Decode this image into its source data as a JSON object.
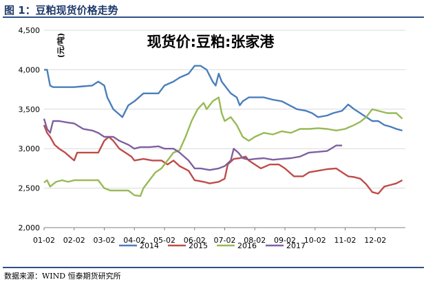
{
  "figure_title": "图 1：豆粕现货价格走势",
  "source": "数据来源：WIND 恒泰期货研究所",
  "chart_data": {
    "type": "line",
    "title": "现货价:豆粕:张家港",
    "ylabel": "(元/吨)",
    "xlabel": "",
    "ylim": [
      2000,
      4500
    ],
    "xlim": [
      1,
      13
    ],
    "x_unit": "month (1.0 = Jan 2)",
    "y_ticks": [
      2000,
      2500,
      3000,
      3500,
      4000,
      4500
    ],
    "y_tick_labels": [
      "2,000",
      "2,500",
      "3,000",
      "3,500",
      "4,000",
      "4,500"
    ],
    "x_ticks": [
      1,
      2,
      3,
      4,
      5,
      6,
      7,
      8,
      9,
      10,
      11,
      12
    ],
    "x_tick_labels": [
      "01-02",
      "02-02",
      "03-02",
      "04-02",
      "05-02",
      "06-02",
      "07-02",
      "08-02",
      "09-02",
      "10-02",
      "11-02",
      "12-02"
    ],
    "grid": "horizontal",
    "legend_position": "bottom",
    "series": [
      {
        "name": "2014",
        "color": "#4a7ebb",
        "points": [
          [
            1.0,
            4000
          ],
          [
            1.1,
            4000
          ],
          [
            1.2,
            3800
          ],
          [
            1.3,
            3780
          ],
          [
            1.5,
            3780
          ],
          [
            1.8,
            3780
          ],
          [
            2.0,
            3780
          ],
          [
            2.3,
            3790
          ],
          [
            2.6,
            3800
          ],
          [
            2.8,
            3850
          ],
          [
            3.0,
            3800
          ],
          [
            3.1,
            3650
          ],
          [
            3.3,
            3500
          ],
          [
            3.45,
            3450
          ],
          [
            3.6,
            3400
          ],
          [
            3.8,
            3550
          ],
          [
            4.0,
            3600
          ],
          [
            4.3,
            3700
          ],
          [
            4.5,
            3700
          ],
          [
            4.8,
            3700
          ],
          [
            5.0,
            3800
          ],
          [
            5.3,
            3850
          ],
          [
            5.5,
            3900
          ],
          [
            5.8,
            3950
          ],
          [
            6.0,
            4050
          ],
          [
            6.2,
            4050
          ],
          [
            6.4,
            4000
          ],
          [
            6.6,
            3850
          ],
          [
            6.7,
            3800
          ],
          [
            6.8,
            3950
          ],
          [
            6.9,
            3850
          ],
          [
            7.0,
            3800
          ],
          [
            7.2,
            3700
          ],
          [
            7.4,
            3650
          ],
          [
            7.5,
            3550
          ],
          [
            7.6,
            3600
          ],
          [
            7.8,
            3650
          ],
          [
            8.0,
            3650
          ],
          [
            8.3,
            3650
          ],
          [
            8.6,
            3620
          ],
          [
            8.9,
            3600
          ],
          [
            9.1,
            3560
          ],
          [
            9.4,
            3500
          ],
          [
            9.7,
            3480
          ],
          [
            9.9,
            3450
          ],
          [
            10.1,
            3400
          ],
          [
            10.4,
            3420
          ],
          [
            10.6,
            3450
          ],
          [
            10.9,
            3480
          ],
          [
            11.1,
            3560
          ],
          [
            11.3,
            3500
          ],
          [
            11.5,
            3450
          ],
          [
            11.7,
            3400
          ],
          [
            11.9,
            3350
          ],
          [
            12.1,
            3350
          ],
          [
            12.3,
            3300
          ],
          [
            12.5,
            3280
          ],
          [
            12.7,
            3250
          ],
          [
            12.9,
            3230
          ]
        ]
      },
      {
        "name": "2015",
        "color": "#be4b48",
        "points": [
          [
            1.0,
            3300
          ],
          [
            1.1,
            3200
          ],
          [
            1.2,
            3150
          ],
          [
            1.35,
            3050
          ],
          [
            1.5,
            3000
          ],
          [
            1.7,
            2950
          ],
          [
            1.85,
            2900
          ],
          [
            2.0,
            2850
          ],
          [
            2.1,
            2950
          ],
          [
            2.4,
            2950
          ],
          [
            2.8,
            2950
          ],
          [
            3.0,
            3100
          ],
          [
            3.15,
            3150
          ],
          [
            3.3,
            3100
          ],
          [
            3.5,
            3000
          ],
          [
            3.7,
            2950
          ],
          [
            3.9,
            2900
          ],
          [
            4.0,
            2850
          ],
          [
            4.3,
            2870
          ],
          [
            4.6,
            2850
          ],
          [
            4.9,
            2850
          ],
          [
            5.1,
            2800
          ],
          [
            5.3,
            2850
          ],
          [
            5.5,
            2780
          ],
          [
            5.8,
            2720
          ],
          [
            6.0,
            2600
          ],
          [
            6.3,
            2580
          ],
          [
            6.5,
            2560
          ],
          [
            6.8,
            2580
          ],
          [
            7.0,
            2620
          ],
          [
            7.1,
            2800
          ],
          [
            7.3,
            2870
          ],
          [
            7.5,
            2880
          ],
          [
            7.7,
            2900
          ],
          [
            7.8,
            2850
          ],
          [
            8.0,
            2800
          ],
          [
            8.2,
            2750
          ],
          [
            8.5,
            2800
          ],
          [
            8.8,
            2800
          ],
          [
            9.0,
            2750
          ],
          [
            9.3,
            2650
          ],
          [
            9.6,
            2650
          ],
          [
            9.8,
            2700
          ],
          [
            10.1,
            2720
          ],
          [
            10.4,
            2740
          ],
          [
            10.7,
            2750
          ],
          [
            10.9,
            2700
          ],
          [
            11.1,
            2650
          ],
          [
            11.3,
            2640
          ],
          [
            11.5,
            2620
          ],
          [
            11.7,
            2550
          ],
          [
            11.9,
            2450
          ],
          [
            12.1,
            2430
          ],
          [
            12.3,
            2520
          ],
          [
            12.5,
            2540
          ],
          [
            12.7,
            2560
          ],
          [
            12.9,
            2600
          ]
        ]
      },
      {
        "name": "2016",
        "color": "#98b954",
        "points": [
          [
            1.0,
            2570
          ],
          [
            1.1,
            2600
          ],
          [
            1.2,
            2520
          ],
          [
            1.4,
            2580
          ],
          [
            1.6,
            2600
          ],
          [
            1.8,
            2580
          ],
          [
            2.0,
            2600
          ],
          [
            2.3,
            2600
          ],
          [
            2.6,
            2600
          ],
          [
            2.8,
            2600
          ],
          [
            3.0,
            2500
          ],
          [
            3.2,
            2470
          ],
          [
            3.5,
            2470
          ],
          [
            3.8,
            2470
          ],
          [
            4.0,
            2410
          ],
          [
            4.2,
            2400
          ],
          [
            4.3,
            2500
          ],
          [
            4.5,
            2600
          ],
          [
            4.7,
            2700
          ],
          [
            4.9,
            2750
          ],
          [
            5.1,
            2850
          ],
          [
            5.3,
            2950
          ],
          [
            5.5,
            2980
          ],
          [
            5.7,
            3150
          ],
          [
            5.9,
            3350
          ],
          [
            6.1,
            3500
          ],
          [
            6.3,
            3580
          ],
          [
            6.4,
            3500
          ],
          [
            6.6,
            3600
          ],
          [
            6.8,
            3650
          ],
          [
            6.9,
            3450
          ],
          [
            7.0,
            3350
          ],
          [
            7.2,
            3400
          ],
          [
            7.4,
            3300
          ],
          [
            7.6,
            3150
          ],
          [
            7.8,
            3100
          ],
          [
            8.0,
            3150
          ],
          [
            8.3,
            3200
          ],
          [
            8.6,
            3180
          ],
          [
            8.9,
            3220
          ],
          [
            9.2,
            3200
          ],
          [
            9.5,
            3250
          ],
          [
            9.8,
            3250
          ],
          [
            10.1,
            3260
          ],
          [
            10.4,
            3250
          ],
          [
            10.7,
            3230
          ],
          [
            11.0,
            3250
          ],
          [
            11.3,
            3300
          ],
          [
            11.5,
            3340
          ],
          [
            11.7,
            3400
          ],
          [
            11.9,
            3500
          ],
          [
            12.1,
            3480
          ],
          [
            12.4,
            3450
          ],
          [
            12.7,
            3450
          ],
          [
            12.9,
            3380
          ]
        ]
      },
      {
        "name": "2017",
        "color": "#7d60a0",
        "points": [
          [
            1.0,
            3380
          ],
          [
            1.1,
            3250
          ],
          [
            1.2,
            3200
          ],
          [
            1.3,
            3350
          ],
          [
            1.5,
            3350
          ],
          [
            1.8,
            3330
          ],
          [
            2.0,
            3320
          ],
          [
            2.3,
            3250
          ],
          [
            2.6,
            3230
          ],
          [
            2.8,
            3200
          ],
          [
            3.0,
            3150
          ],
          [
            3.3,
            3150
          ],
          [
            3.5,
            3100
          ],
          [
            3.8,
            3050
          ],
          [
            4.0,
            3000
          ],
          [
            4.2,
            3020
          ],
          [
            4.5,
            3020
          ],
          [
            4.8,
            3030
          ],
          [
            5.0,
            3000
          ],
          [
            5.3,
            3000
          ],
          [
            5.5,
            2950
          ],
          [
            5.8,
            2850
          ],
          [
            6.0,
            2750
          ],
          [
            6.2,
            2750
          ],
          [
            6.5,
            2730
          ],
          [
            6.8,
            2750
          ],
          [
            7.0,
            2780
          ],
          [
            7.2,
            2850
          ],
          [
            7.3,
            3000
          ],
          [
            7.45,
            2950
          ],
          [
            7.6,
            2880
          ],
          [
            7.8,
            2860
          ],
          [
            8.0,
            2870
          ],
          [
            8.3,
            2880
          ],
          [
            8.6,
            2860
          ],
          [
            8.9,
            2870
          ],
          [
            9.2,
            2880
          ],
          [
            9.5,
            2900
          ],
          [
            9.8,
            2950
          ],
          [
            10.1,
            2960
          ],
          [
            10.4,
            2970
          ],
          [
            10.7,
            3040
          ],
          [
            10.9,
            3040
          ]
        ]
      }
    ]
  }
}
